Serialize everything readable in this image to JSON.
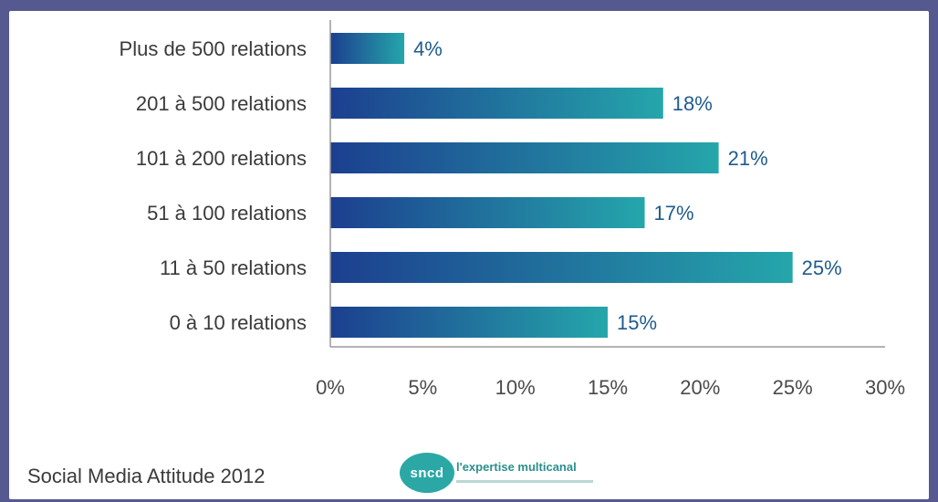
{
  "chart_data": {
    "type": "bar",
    "orientation": "horizontal",
    "categories": [
      "Plus de 500 relations",
      "201 à 500 relations",
      "101 à 200 relations",
      "51 à 100 relations",
      "11 à 50 relations",
      "0 à 10 relations"
    ],
    "values": [
      4,
      18,
      21,
      17,
      25,
      15
    ],
    "value_labels": [
      "4%",
      "18%",
      "21%",
      "17%",
      "25%",
      "15%"
    ],
    "xlim": [
      0,
      30
    ],
    "x_ticks": [
      "0%",
      "5%",
      "10%",
      "15%",
      "20%",
      "25%",
      "30%"
    ],
    "grid": false,
    "legend": "none",
    "colors": {
      "bar_start": "#1c3f8f",
      "bar_end": "#25a6ab",
      "value_label": "#1f5b8c"
    }
  },
  "footer": {
    "source": "Social Media Attitude 2012",
    "logo_mark": "sncd",
    "logo_tagline": "l'expertise multicanal"
  }
}
